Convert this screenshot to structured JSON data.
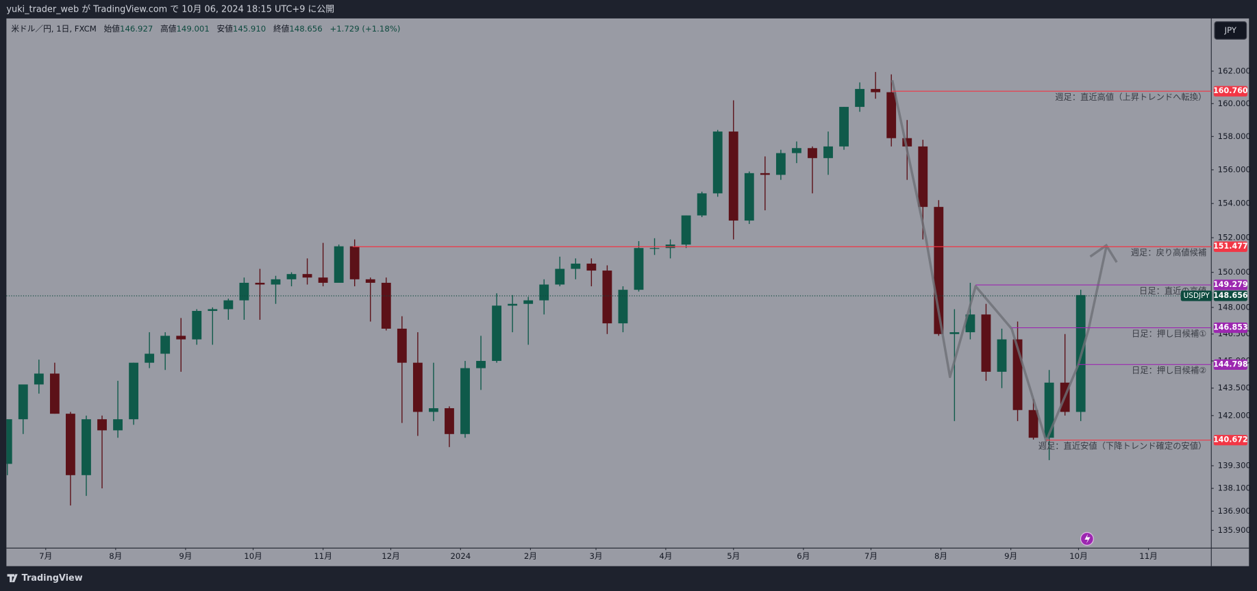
{
  "header": {
    "title": "yuki_trader_web が TradingView.com で 10月 06, 2024 18:15 UTC+9 に公開"
  },
  "footer": {
    "brand": "TradingView"
  },
  "currency_button": "JPY",
  "chart_data": {
    "type": "candlestick",
    "log": true,
    "up_color": "#0f5a4a",
    "down_color": "#5c1118",
    "legend": {
      "symbol": "米ドル／円, 1日, FXCM",
      "open_label": "始値",
      "open": {
        "value": 146.927,
        "label": "146.927"
      },
      "high_label": "高値",
      "high": {
        "value": 149.001,
        "label": "149.001"
      },
      "low_label": "安値",
      "low": {
        "value": 145.91,
        "label": "145.910"
      },
      "close_label": "終値",
      "close": {
        "value": 148.656,
        "label": "148.656"
      },
      "change": "+1.729 (+1.18%)"
    },
    "xlim": [
      -0.06,
      76.27
    ],
    "xticks": [
      {
        "value": 2.43,
        "label": "7月"
      },
      {
        "value": 6.86,
        "label": "8月"
      },
      {
        "value": 11.29,
        "label": "9月"
      },
      {
        "value": 15.57,
        "label": "10月"
      },
      {
        "value": 20.0,
        "label": "11月"
      },
      {
        "value": 24.29,
        "label": "12月"
      },
      {
        "value": 28.71,
        "label": "2024"
      },
      {
        "value": 33.14,
        "label": "2月"
      },
      {
        "value": 37.29,
        "label": "3月"
      },
      {
        "value": 41.71,
        "label": "4月"
      },
      {
        "value": 46.0,
        "label": "5月"
      },
      {
        "value": 50.43,
        "label": "6月"
      },
      {
        "value": 54.71,
        "label": "7月"
      },
      {
        "value": 59.14,
        "label": "8月"
      },
      {
        "value": 63.57,
        "label": "9月"
      },
      {
        "value": 67.86,
        "label": "10月"
      },
      {
        "value": 72.29,
        "label": "11月"
      }
    ],
    "ylim": [
      135.0,
      165.3
    ],
    "yticks": [
      {
        "value": 162,
        "label": "162.000"
      },
      {
        "value": 160,
        "label": "160.000"
      },
      {
        "value": 158,
        "label": "158.000"
      },
      {
        "value": 156,
        "label": "156.000"
      },
      {
        "value": 154,
        "label": "154.000"
      },
      {
        "value": 152,
        "label": "152.000"
      },
      {
        "value": 150,
        "label": "150.000"
      },
      {
        "value": 148,
        "label": "148.000"
      },
      {
        "value": 146.5,
        "label": "146.500"
      },
      {
        "value": 145,
        "label": "145.000"
      },
      {
        "value": 143.5,
        "label": "143.500"
      },
      {
        "value": 142,
        "label": "142.000"
      },
      {
        "value": 139.3,
        "label": "139.300"
      },
      {
        "value": 138.1,
        "label": "138.100"
      },
      {
        "value": 136.9,
        "label": "136.900"
      },
      {
        "value": 135.9,
        "label": "135.900"
      }
    ],
    "open": [
      139.4,
      141.8,
      143.7,
      144.3,
      142.1,
      138.8,
      141.8,
      141.2,
      141.8,
      144.9,
      145.4,
      146.4,
      146.2,
      147.8,
      147.9,
      148.4,
      149.4,
      149.3,
      149.6,
      149.9,
      149.7,
      149.4,
      151.5,
      149.6,
      149.4,
      146.8,
      144.9,
      142.2,
      142.4,
      141.0,
      144.6,
      145.0,
      148.1,
      148.2,
      148.4,
      149.3,
      150.2,
      150.5,
      150.1,
      147.1,
      149.0,
      151.4,
      151.4,
      151.6,
      153.3,
      154.6,
      158.3,
      153.0,
      155.8,
      155.7,
      157.0,
      157.3,
      156.7,
      157.4,
      159.8,
      160.9,
      160.7,
      157.9,
      157.4,
      153.8,
      146.5,
      146.6,
      147.6,
      144.4,
      146.2,
      142.3,
      140.8,
      143.8,
      142.2
    ],
    "high": [
      141.8,
      143.5,
      145.07,
      144.9,
      142.2,
      142.0,
      142.0,
      143.9,
      144.9,
      146.6,
      146.6,
      147.4,
      147.9,
      148.0,
      148.5,
      149.7,
      150.2,
      149.8,
      150.0,
      150.8,
      151.7,
      151.6,
      151.9,
      149.7,
      149.7,
      147.5,
      146.6,
      144.9,
      142.5,
      145.0,
      146.4,
      148.8,
      148.7,
      148.6,
      149.6,
      150.9,
      150.8,
      150.8,
      150.4,
      149.2,
      151.8,
      151.97,
      151.9,
      153.3,
      154.7,
      158.4,
      160.2,
      155.9,
      156.8,
      157.2,
      157.7,
      157.4,
      158.3,
      159.8,
      161.3,
      161.95,
      161.8,
      159.0,
      157.8,
      154.2,
      147.9,
      149.4,
      148.2,
      146.8,
      147.2,
      142.9,
      144.5,
      146.5,
      149.0
    ],
    "low": [
      138.8,
      141.0,
      143.2,
      142.1,
      137.2,
      137.7,
      138.1,
      140.8,
      141.5,
      144.6,
      144.5,
      144.4,
      145.9,
      145.9,
      147.3,
      147.3,
      147.3,
      148.2,
      149.2,
      149.3,
      149.2,
      149.6,
      149.2,
      147.2,
      146.7,
      141.6,
      140.9,
      141.7,
      140.3,
      140.8,
      143.4,
      144.9,
      146.6,
      145.9,
      147.6,
      149.2,
      149.6,
      149.2,
      146.5,
      146.6,
      148.9,
      151.0,
      150.8,
      151.4,
      153.2,
      154.4,
      151.9,
      152.8,
      153.6,
      155.4,
      156.4,
      154.6,
      155.7,
      157.2,
      159.5,
      160.3,
      157.4,
      155.4,
      151.9,
      146.4,
      141.7,
      146.2,
      143.9,
      143.5,
      141.7,
      140.7,
      139.6,
      142.0,
      141.7
    ],
    "close": [
      141.8,
      143.7,
      144.3,
      142.1,
      138.8,
      141.8,
      141.2,
      141.8,
      144.9,
      145.4,
      146.4,
      146.2,
      147.8,
      147.9,
      148.4,
      149.4,
      149.3,
      149.6,
      149.9,
      149.7,
      149.4,
      151.5,
      149.6,
      149.4,
      146.8,
      144.9,
      142.2,
      142.4,
      141.0,
      144.6,
      145.0,
      148.1,
      148.2,
      148.4,
      149.3,
      150.2,
      150.5,
      150.1,
      147.1,
      149.0,
      151.4,
      151.4,
      151.6,
      153.3,
      154.6,
      158.3,
      153.0,
      155.8,
      155.7,
      157.0,
      157.3,
      156.7,
      157.4,
      159.8,
      160.9,
      160.7,
      157.9,
      157.4,
      153.8,
      146.5,
      146.6,
      147.6,
      144.4,
      146.2,
      142.3,
      140.8,
      143.8,
      142.2,
      148.7
    ],
    "current_price": {
      "name": "USDJPY",
      "value": 148.656,
      "color": "#0d4a3e"
    },
    "levels": [
      {
        "value": 160.76,
        "label": "160.760",
        "from": 56.0,
        "color": "#f23645",
        "note": "週足：直近高値（上昇トレンドへ転換）"
      },
      {
        "value": 151.477,
        "label": "151.477",
        "from": 21.88,
        "color": "#f23645",
        "note": "週足：戻り高値候補"
      },
      {
        "value": 149.279,
        "label": "149.279",
        "from": 61.34,
        "color": "#9c27b0",
        "note": "日足：直近の高値"
      },
      {
        "value": 146.853,
        "label": "146.853",
        "from": 63.62,
        "color": "#9c27b0",
        "note": "日足：押し目候補①"
      },
      {
        "value": 144.798,
        "label": "144.798",
        "from": 67.84,
        "color": "#9c27b0",
        "note": "日足：押し目候補②"
      },
      {
        "value": 140.672,
        "label": "140.672",
        "from": 65.81,
        "color": "#f23645",
        "note": "週足：直近安値（下降トレンド確定の安値）"
      }
    ]
  }
}
